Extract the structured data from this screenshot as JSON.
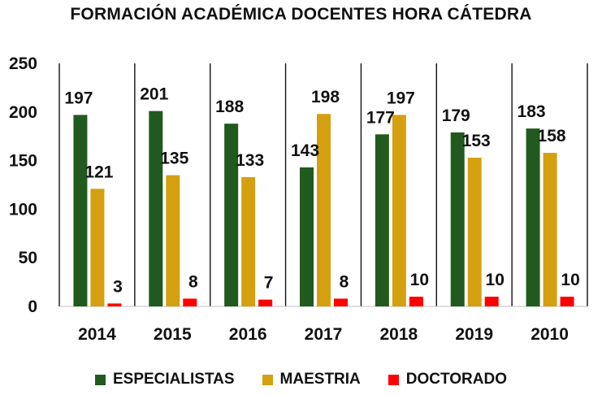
{
  "chart_data": {
    "type": "bar",
    "title": "FORMACIÓN ACADÉMICA DOCENTES HORA CÁTEDRA",
    "xlabel": "",
    "ylabel": "",
    "categories": [
      "2014",
      "2015",
      "2016",
      "2017",
      "2018",
      "2019",
      "2010"
    ],
    "ylim": [
      0,
      250
    ],
    "yticks": [
      0,
      50,
      100,
      150,
      200,
      250
    ],
    "grid": false,
    "legend_position": "bottom",
    "series": [
      {
        "name": "ESPECIALISTAS",
        "color": "#215a1f",
        "values": [
          197,
          201,
          188,
          143,
          177,
          179,
          183
        ]
      },
      {
        "name": "MAESTRIA",
        "color": "#d4a010",
        "values": [
          121,
          135,
          133,
          198,
          197,
          153,
          158
        ]
      },
      {
        "name": "DOCTORADO",
        "color": "#ff0000",
        "values": [
          3,
          8,
          7,
          8,
          10,
          10,
          10
        ]
      }
    ]
  }
}
